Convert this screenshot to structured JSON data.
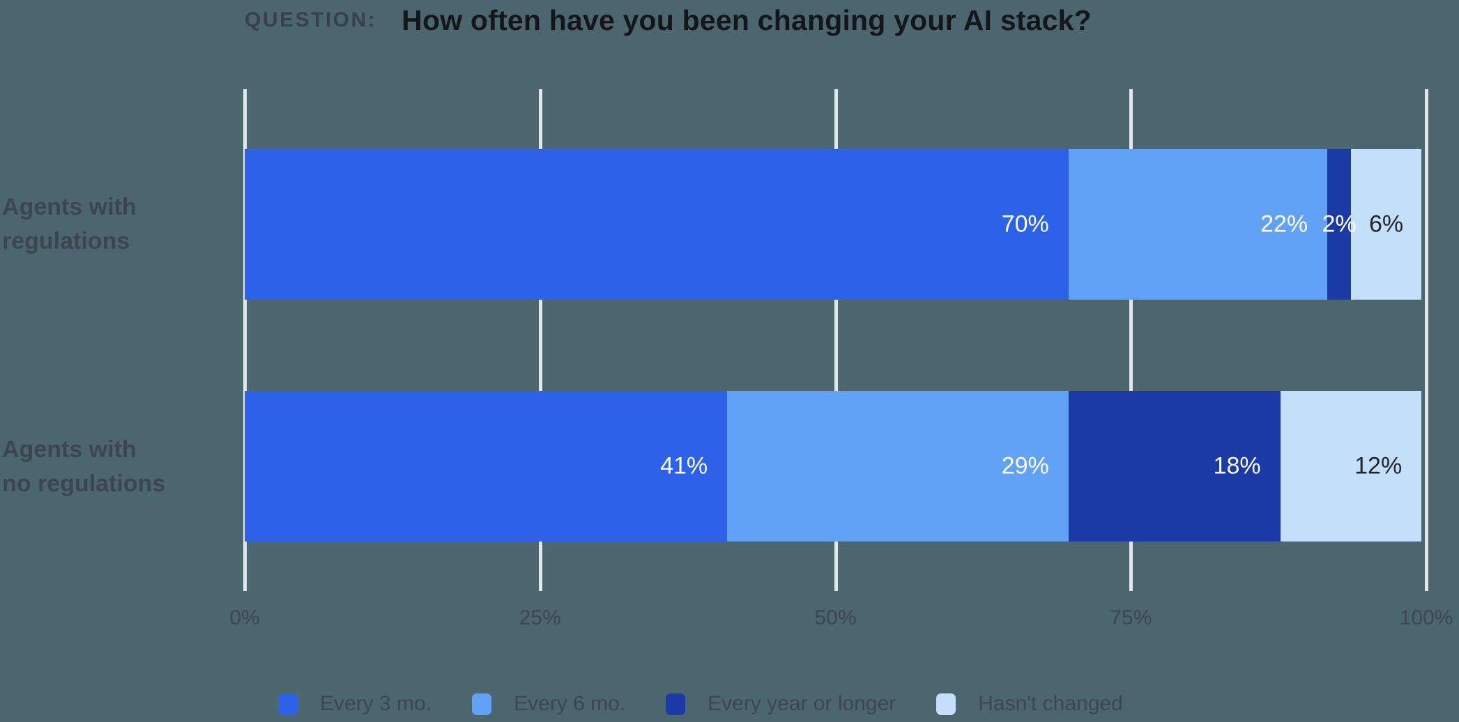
{
  "title": {
    "prefix": "QUESTION:",
    "text": "How often have you been changing your AI stack?"
  },
  "colors": {
    "background": "#4c666f",
    "gridline": "#e2e7ee",
    "title_prefix": "#394049",
    "title_text": "#14161a",
    "muted_text": "#3d4650",
    "data_label_light": "#ffffff",
    "data_label_dark": "#22262c"
  },
  "chart_data": {
    "type": "bar",
    "orientation": "horizontal",
    "stacked": true,
    "grid": true,
    "legend_position": "bottom",
    "xlim": [
      0,
      100
    ],
    "x_ticks": [
      "0%",
      "25%",
      "50%",
      "75%",
      "100%"
    ],
    "data_label_suffix": "%",
    "categories": [
      {
        "id": "agents-with-regulations",
        "lines": [
          "Agents with",
          "regulations"
        ]
      },
      {
        "id": "agents-with-no-regulations",
        "lines": [
          "Agents with",
          "no regulations"
        ]
      }
    ],
    "series": [
      {
        "name": "Every 3 mo.",
        "color": "#2d62e8",
        "data_label_color": "#ffffff",
        "values": [
          70,
          41
        ]
      },
      {
        "name": "Every 6 mo.",
        "color": "#61a2f7",
        "data_label_color": "#ffffff",
        "values": [
          22,
          29
        ]
      },
      {
        "name": "Every year or longer",
        "color": "#1b3aa5",
        "data_label_color": "#ffffff",
        "values": [
          2,
          18
        ]
      },
      {
        "name": "Hasn't changed",
        "color": "#c4dffa",
        "data_label_color": "#22262c",
        "values": [
          6,
          12
        ]
      }
    ]
  }
}
